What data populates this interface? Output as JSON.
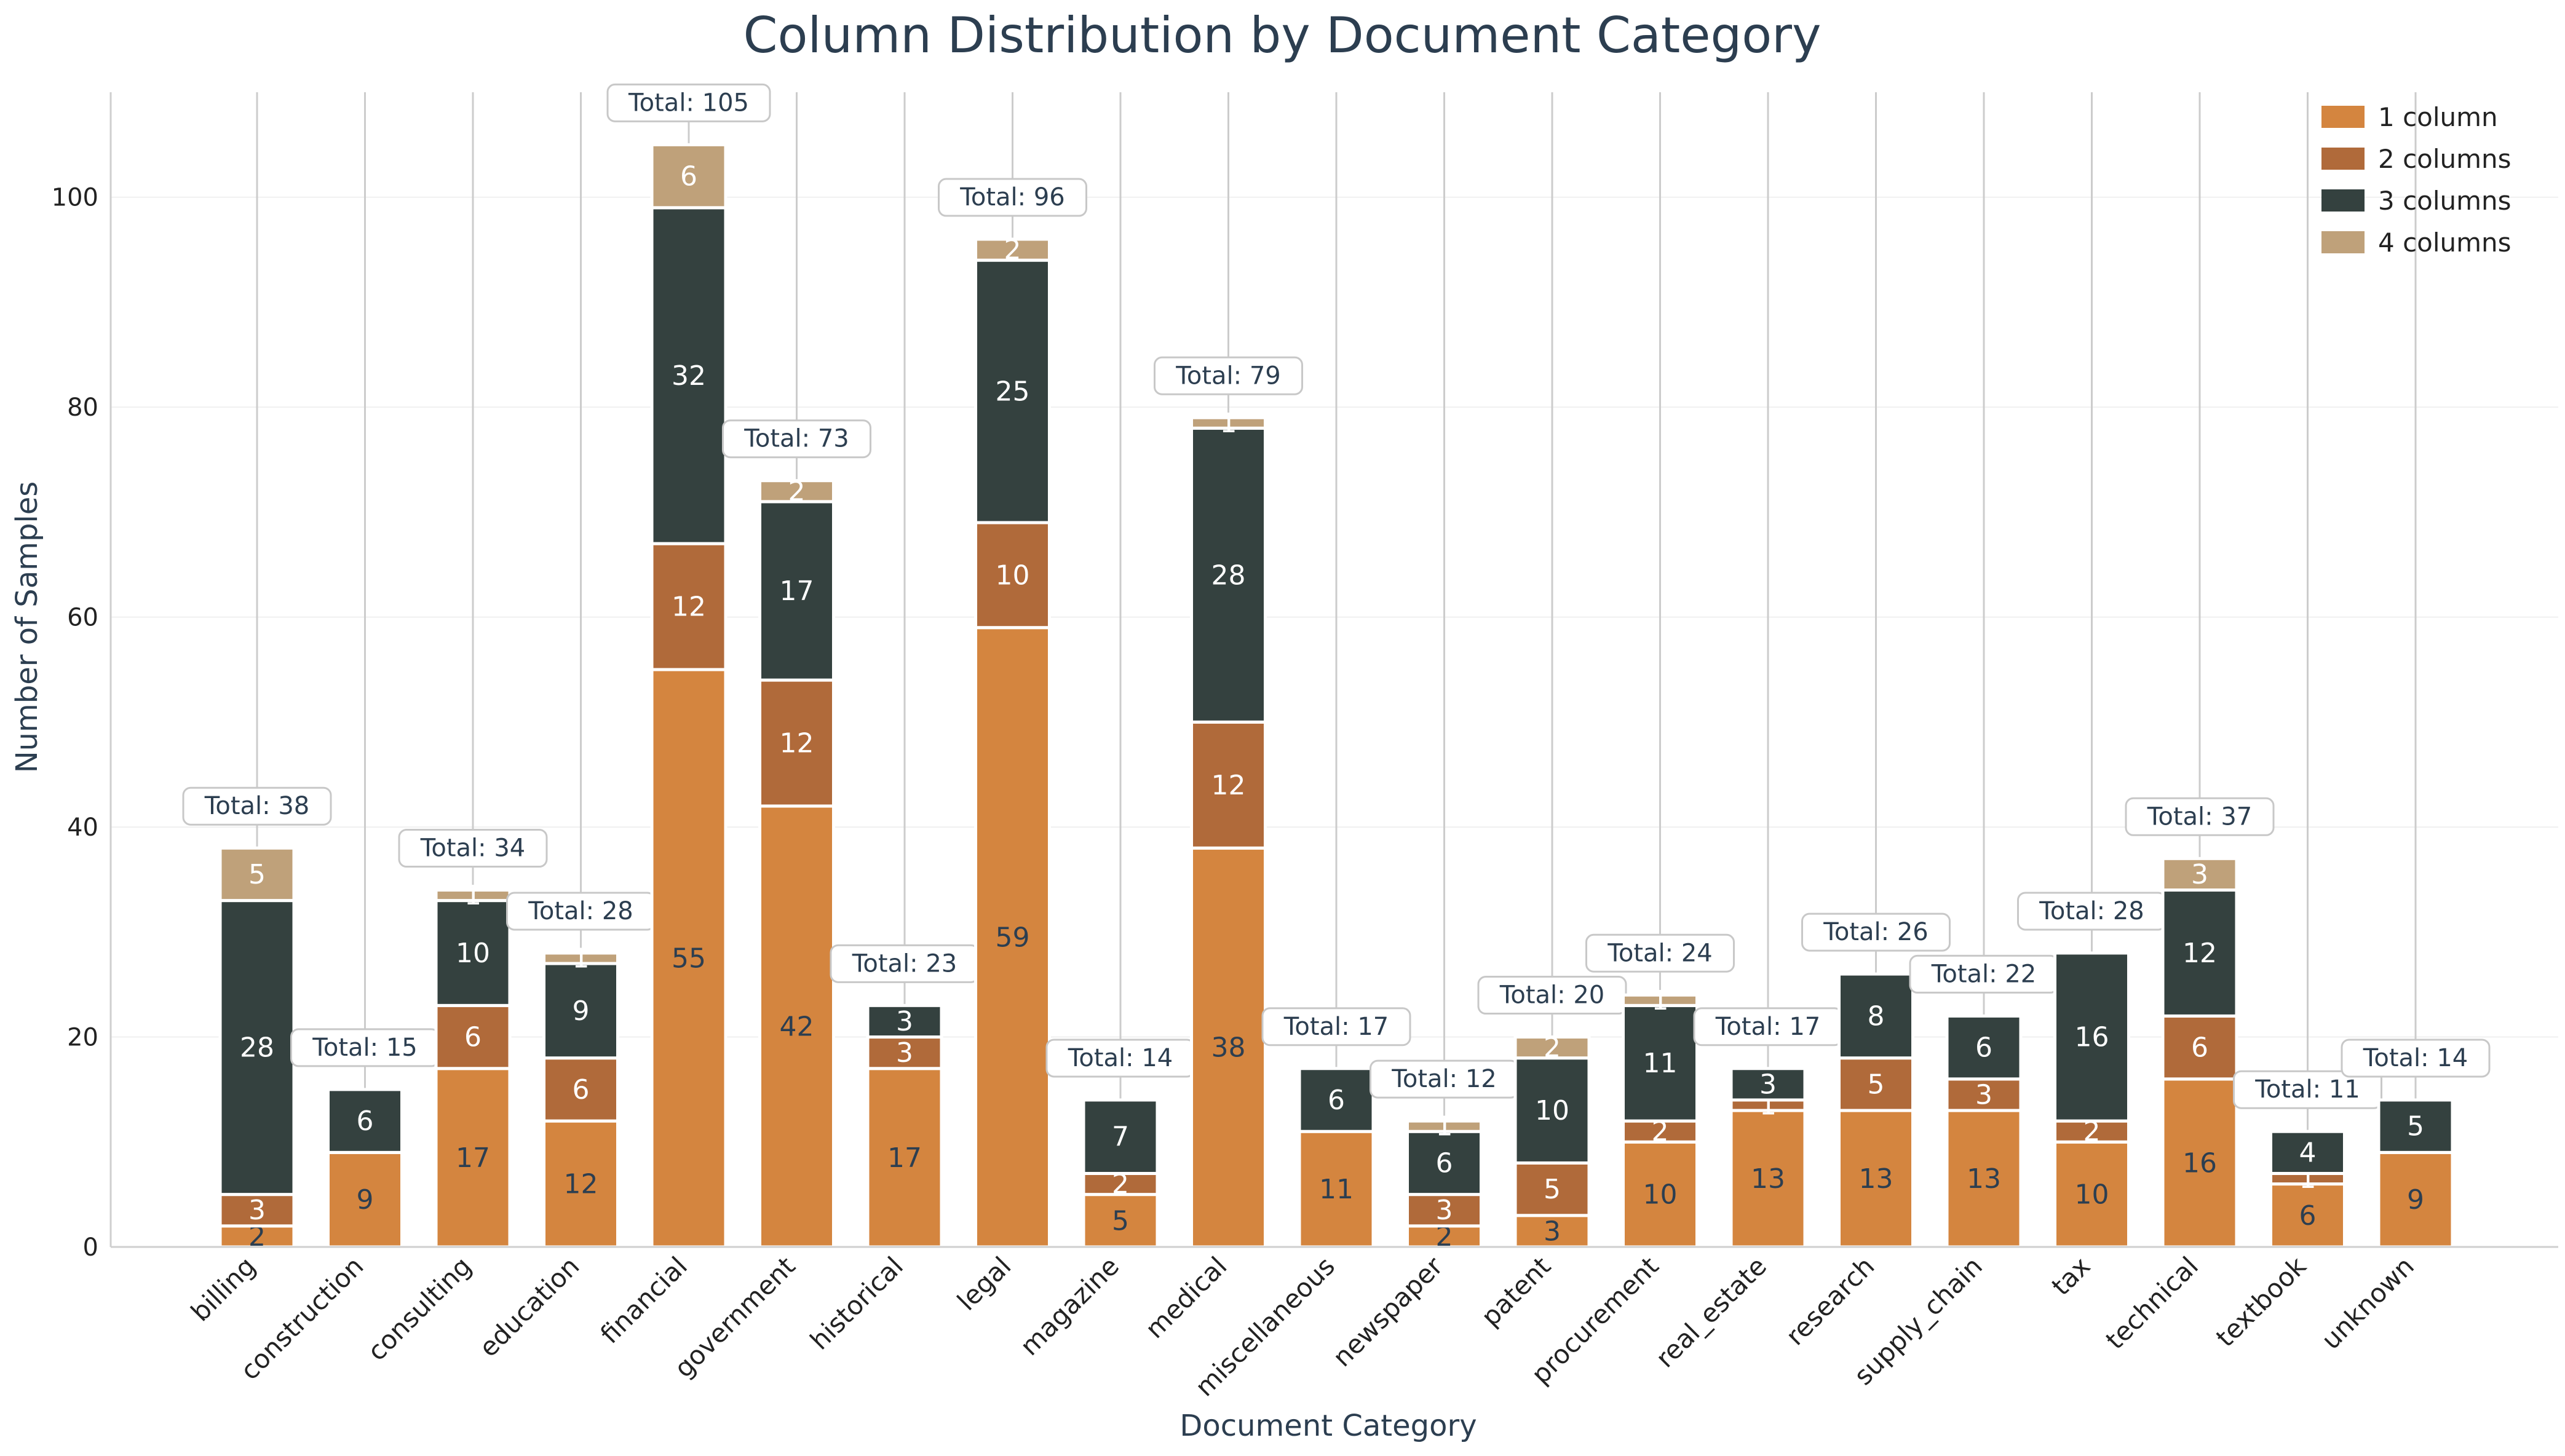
{
  "chart_data": {
    "type": "bar",
    "stacked": true,
    "title": "Column Distribution by Document Category",
    "xlabel": "Document Category",
    "ylabel": "Number of Samples",
    "ylim": [
      0,
      110
    ],
    "yticks": [
      0,
      20,
      40,
      60,
      80,
      100
    ],
    "grid": "horizontal light",
    "legend_position": "top-right",
    "total_prefix": "Total: ",
    "categories": [
      "billing",
      "construction",
      "consulting",
      "education",
      "financial",
      "government",
      "historical",
      "legal",
      "magazine",
      "medical",
      "miscellaneous",
      "newspaper",
      "patent",
      "procurement",
      "real_estate",
      "research",
      "supply_chain",
      "tax",
      "technical",
      "textbook",
      "unknown"
    ],
    "series": [
      {
        "name": "1 column",
        "color": "#d4853f",
        "label_color": "#2c3e50",
        "values": [
          2,
          9,
          17,
          12,
          55,
          42,
          17,
          59,
          5,
          38,
          11,
          2,
          3,
          10,
          13,
          13,
          13,
          10,
          16,
          6,
          9
        ]
      },
      {
        "name": "2 columns",
        "color": "#b06a3a",
        "label_color": "#ffffff",
        "values": [
          3,
          0,
          6,
          6,
          12,
          12,
          3,
          10,
          2,
          12,
          0,
          3,
          5,
          2,
          1,
          5,
          3,
          2,
          6,
          1,
          0
        ]
      },
      {
        "name": "3 columns",
        "color": "#34413f",
        "label_color": "#ffffff",
        "values": [
          28,
          6,
          10,
          9,
          32,
          17,
          3,
          25,
          7,
          28,
          6,
          6,
          10,
          11,
          3,
          8,
          6,
          16,
          12,
          4,
          5
        ]
      },
      {
        "name": "4 columns",
        "color": "#bfa17a",
        "label_color": "#ffffff",
        "values": [
          5,
          0,
          1,
          1,
          6,
          2,
          0,
          2,
          0,
          1,
          0,
          1,
          2,
          1,
          0,
          0,
          0,
          0,
          3,
          0,
          0
        ]
      }
    ],
    "totals": [
      38,
      15,
      34,
      28,
      105,
      73,
      23,
      96,
      14,
      79,
      17,
      12,
      20,
      24,
      17,
      26,
      22,
      28,
      37,
      11,
      14
    ]
  }
}
